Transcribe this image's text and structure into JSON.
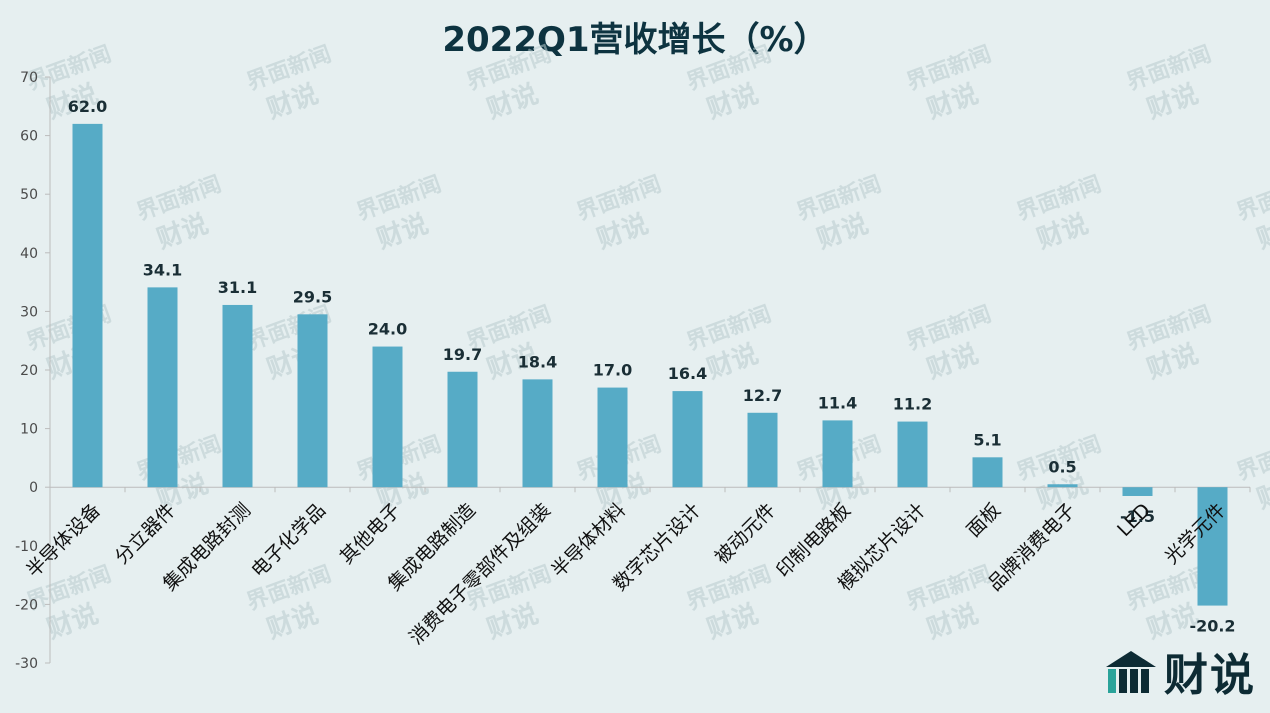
{
  "chart_data": {
    "type": "bar",
    "title": "2022Q1营收增长（%）",
    "categories": [
      "半导体设备",
      "分立器件",
      "集成电路封测",
      "电子化学品",
      "其他电子",
      "集成电路制造",
      "消费电子零部件及组装",
      "半导体材料",
      "数字芯片设计",
      "被动元件",
      "印制电路板",
      "模拟芯片设计",
      "面板",
      "品牌消费电子",
      "LED",
      "光学元件"
    ],
    "values": [
      62.0,
      34.1,
      31.1,
      29.5,
      24.0,
      19.7,
      18.4,
      17.0,
      16.4,
      12.7,
      11.4,
      11.2,
      5.1,
      0.5,
      -1.5,
      -20.2
    ],
    "value_labels": [
      "62.0",
      "34.1",
      "31.1",
      "29.5",
      "24.0",
      "19.7",
      "18.4",
      "17.0",
      "16.4",
      "12.7",
      "11.4",
      "11.2",
      "5.1",
      "0.5",
      "-1.5",
      "-20.2"
    ],
    "ylim": [
      -30,
      70
    ],
    "yticks": [
      -30,
      -20,
      -10,
      0,
      10,
      20,
      30,
      40,
      50,
      60,
      70
    ],
    "xlabel": "",
    "ylabel": "",
    "grid": false,
    "bar_color": "#56abc6"
  },
  "watermark": {
    "text1": "界面新闻",
    "text2": "财说"
  },
  "brand": {
    "logo_text": "财说",
    "icon": "building-logo-icon"
  }
}
